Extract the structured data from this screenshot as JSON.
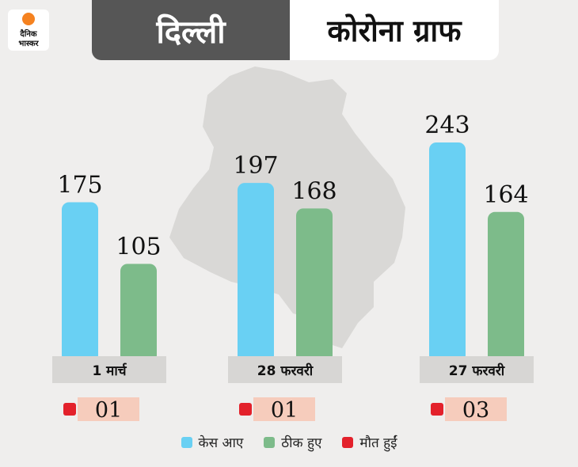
{
  "header": {
    "title_left": "दिल्ली",
    "title_right": "कोरोना ग्राफ",
    "logo_text": "दैनिक भास्कर"
  },
  "colors": {
    "background": "#efeeed",
    "map": "#d9d8d6",
    "cases": "#69d0f3",
    "recovered": "#7dbb8a",
    "deaths": "#e3212b",
    "category_box": "#d7d6d4",
    "death_box": "#f6ccbc",
    "logo_orange": "#f58220"
  },
  "chart_data": {
    "type": "bar",
    "title": "",
    "xlabel": "",
    "ylabel": "",
    "categories": [
      "1 मार्च",
      "28 फरवरी",
      "27 फरवरी"
    ],
    "series": [
      {
        "name": "केस आए",
        "values": [
          175,
          197,
          243
        ]
      },
      {
        "name": "ठीक हुए",
        "values": [
          105,
          168,
          164
        ]
      },
      {
        "name": "मौत हुईं",
        "values": [
          1,
          1,
          3
        ],
        "labels": [
          "01",
          "01",
          "03"
        ]
      }
    ],
    "ylim": [
      0,
      243
    ],
    "grid": false,
    "legend_position": "bottom"
  }
}
